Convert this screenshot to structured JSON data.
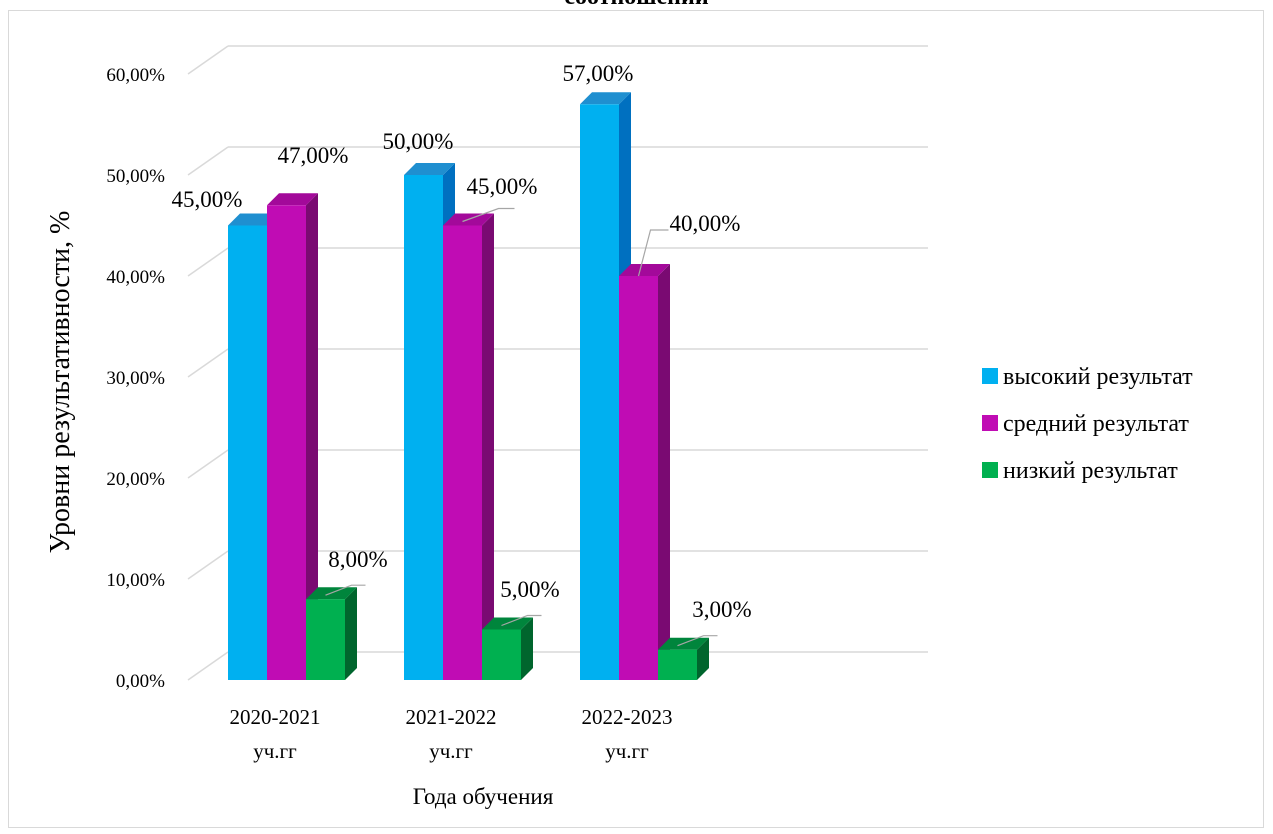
{
  "chart_data": {
    "type": "bar",
    "title": "соотношений",
    "xlabel": "Года обучения",
    "ylabel": "Уровни результативности, %",
    "categories": [
      [
        "2020-2021",
        "уч.гг"
      ],
      [
        "2021-2022",
        "уч.гг"
      ],
      [
        "2022-2023",
        "уч.гг"
      ]
    ],
    "series": [
      {
        "name": "высокий результат",
        "values": [
          45,
          50,
          57
        ],
        "labels": [
          "45,00%",
          "50,00%",
          "57,00%"
        ],
        "color": "#00b0f0",
        "side": "#0070c0",
        "top": "#1f8fd0"
      },
      {
        "name": "средний результат",
        "values": [
          47,
          45,
          40
        ],
        "labels": [
          "47,00%",
          "45,00%",
          "40,00%"
        ],
        "color": "#c00cb4",
        "side": "#7a0a72",
        "top": "#a3099a"
      },
      {
        "name": "низкий результат",
        "values": [
          8,
          5,
          3
        ],
        "labels": [
          "8,00%",
          "5,00%",
          "3,00%"
        ],
        "color": "#00b050",
        "side": "#00652d",
        "top": "#00853c"
      }
    ],
    "yticks": [
      "0,00%",
      "10,00%",
      "20,00%",
      "30,00%",
      "40,00%",
      "50,00%",
      "60,00%"
    ],
    "ylim": [
      0,
      60
    ],
    "grid": true,
    "legend": "right"
  }
}
